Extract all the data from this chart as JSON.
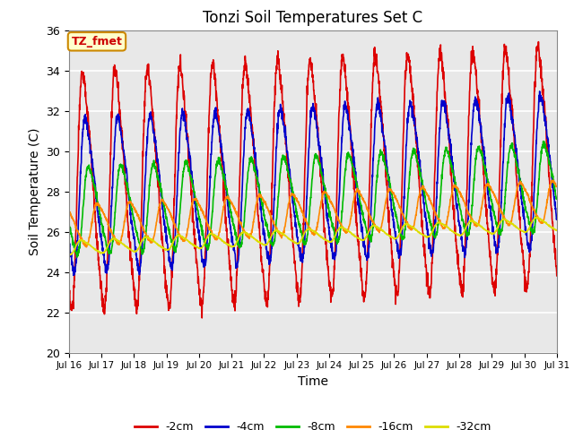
{
  "title": "Tonzi Soil Temperatures Set C",
  "xlabel": "Time",
  "ylabel": "Soil Temperature (C)",
  "ylim": [
    20,
    36
  ],
  "yticks": [
    20,
    22,
    24,
    26,
    28,
    30,
    32,
    34,
    36
  ],
  "xtick_labels": [
    "Jul 16",
    "Jul 17",
    "Jul 18",
    "Jul 19",
    "Jul 20",
    "Jul 21",
    "Jul 22",
    "Jul 23",
    "Jul 24",
    "Jul 25",
    "Jul 26",
    "Jul 27",
    "Jul 28",
    "Jul 29",
    "Jul 30",
    "Jul 31"
  ],
  "label_box_text": "TZ_fmet",
  "label_box_color": "#ffffcc",
  "label_box_edge": "#cc8800",
  "lines": [
    {
      "label": "-2cm",
      "color": "#dd0000",
      "amp": 5.5,
      "mean": 28.0,
      "phase_shift": 0.0,
      "delay": 0.0
    },
    {
      "label": "-4cm",
      "color": "#0000cc",
      "amp": 3.5,
      "mean": 27.8,
      "phase_shift": 0.0,
      "delay": 0.08
    },
    {
      "label": "-8cm",
      "color": "#00bb00",
      "amp": 2.0,
      "mean": 27.0,
      "phase_shift": 0.0,
      "delay": 0.18
    },
    {
      "label": "-16cm",
      "color": "#ff8800",
      "amp": 0.95,
      "mean": 26.3,
      "phase_shift": 0.0,
      "delay": 0.45
    },
    {
      "label": "-32cm",
      "color": "#dddd00",
      "amp": 0.32,
      "mean": 25.2,
      "phase_shift": 0.0,
      "delay": 0.95
    }
  ],
  "background_color": "#e8e8e8",
  "grid_color": "#ffffff",
  "linewidth": 1.2,
  "figsize": [
    6.4,
    4.8
  ],
  "dpi": 100
}
